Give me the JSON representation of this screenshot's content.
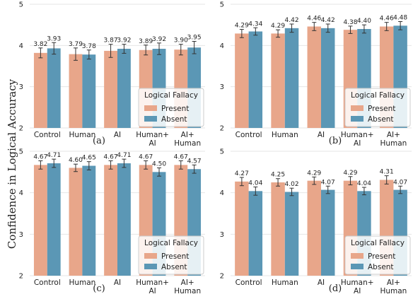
{
  "figure": {
    "ylabel": "Confidence in Logical Accuracy"
  },
  "colors": {
    "present": "#E8A68A",
    "absent": "#5B97B5",
    "error": "#333333",
    "grid": "#e6e6e6",
    "axis": "#cccccc",
    "text": "#222222"
  },
  "chart_data": [
    {
      "type": "bar",
      "panel": "(a)",
      "categories": [
        "Control",
        "Human",
        "AI",
        "Human+\nAI",
        "AI+\nHuman"
      ],
      "ylim": [
        2,
        5
      ],
      "yticks": [
        2,
        3,
        4,
        5
      ],
      "legend_title": "Logical Fallacy",
      "legend_position": "bottom-right",
      "series": [
        {
          "name": "Present",
          "values": [
            3.82,
            3.79,
            3.87,
            3.89,
            3.9
          ],
          "errors": [
            0.12,
            0.15,
            0.16,
            0.12,
            0.13
          ]
        },
        {
          "name": "Absent",
          "values": [
            3.93,
            3.78,
            3.92,
            3.92,
            3.95
          ],
          "errors": [
            0.14,
            0.11,
            0.11,
            0.14,
            0.15
          ]
        }
      ],
      "value_labels": {
        "present": [
          "3.82",
          "3.79",
          "3.87",
          "3.89",
          "3.90"
        ],
        "absent": [
          "3.93",
          "3.78",
          "3.92",
          "3.92",
          "3.95"
        ]
      }
    },
    {
      "type": "bar",
      "panel": "(b)",
      "categories": [
        "Control",
        "Human",
        "AI",
        "Human+\nAI",
        "AI+\nHuman"
      ],
      "ylim": [
        2,
        5
      ],
      "yticks": [
        2,
        3,
        4,
        5
      ],
      "legend_title": "Logical Fallacy",
      "legend_position": "bottom-right",
      "series": [
        {
          "name": "Present",
          "values": [
            4.29,
            4.29,
            4.46,
            4.38,
            4.46
          ],
          "errors": [
            0.1,
            0.09,
            0.1,
            0.09,
            0.1
          ]
        },
        {
          "name": "Absent",
          "values": [
            4.34,
            4.42,
            4.42,
            4.4,
            4.48
          ],
          "errors": [
            0.09,
            0.1,
            0.1,
            0.1,
            0.1
          ]
        }
      ],
      "value_labels": {
        "present": [
          "4.29",
          "4.29",
          "4.46",
          "4.38",
          "4.46"
        ],
        "absent": [
          "4.34",
          "4.42",
          "4.42",
          "4.40",
          "4.48"
        ]
      }
    },
    {
      "type": "bar",
      "panel": "(c)",
      "categories": [
        "Control",
        "Human",
        "AI",
        "Human+\nAI",
        "AI+\nHuman"
      ],
      "ylim": [
        2,
        5
      ],
      "yticks": [
        2,
        3,
        4,
        5
      ],
      "legend_title": "Logical Fallacy",
      "legend_position": "bottom-right",
      "series": [
        {
          "name": "Present",
          "values": [
            4.67,
            4.6,
            4.67,
            4.67,
            4.67
          ],
          "errors": [
            0.1,
            0.09,
            0.1,
            0.1,
            0.1
          ]
        },
        {
          "name": "Absent",
          "values": [
            4.71,
            4.65,
            4.71,
            4.5,
            4.57
          ],
          "errors": [
            0.1,
            0.1,
            0.1,
            0.1,
            0.1
          ]
        }
      ],
      "value_labels": {
        "present": [
          "4.67",
          "4.60",
          "4.67",
          "4.67",
          "4.67"
        ],
        "absent": [
          "4.71",
          "4.65",
          "4.71",
          "4.50",
          "4.57"
        ]
      }
    },
    {
      "type": "bar",
      "panel": "(d)",
      "categories": [
        "Control",
        "Human",
        "AI",
        "Human+\nAI",
        "AI+\nHuman"
      ],
      "ylim": [
        2,
        5
      ],
      "yticks": [
        2,
        3,
        4,
        5
      ],
      "legend_title": "Logical Fallacy",
      "legend_position": "bottom-right",
      "series": [
        {
          "name": "Present",
          "values": [
            4.27,
            4.25,
            4.29,
            4.29,
            4.31
          ],
          "errors": [
            0.1,
            0.09,
            0.09,
            0.1,
            0.1
          ]
        },
        {
          "name": "Absent",
          "values": [
            4.04,
            4.02,
            4.07,
            4.04,
            4.07
          ],
          "errors": [
            0.1,
            0.09,
            0.09,
            0.09,
            0.09
          ]
        }
      ],
      "value_labels": {
        "present": [
          "4.27",
          "4.25",
          "4.29",
          "4.29",
          "4.31"
        ],
        "absent": [
          "4.04",
          "4.02",
          "4.07",
          "4.04",
          "4.07"
        ]
      }
    }
  ]
}
